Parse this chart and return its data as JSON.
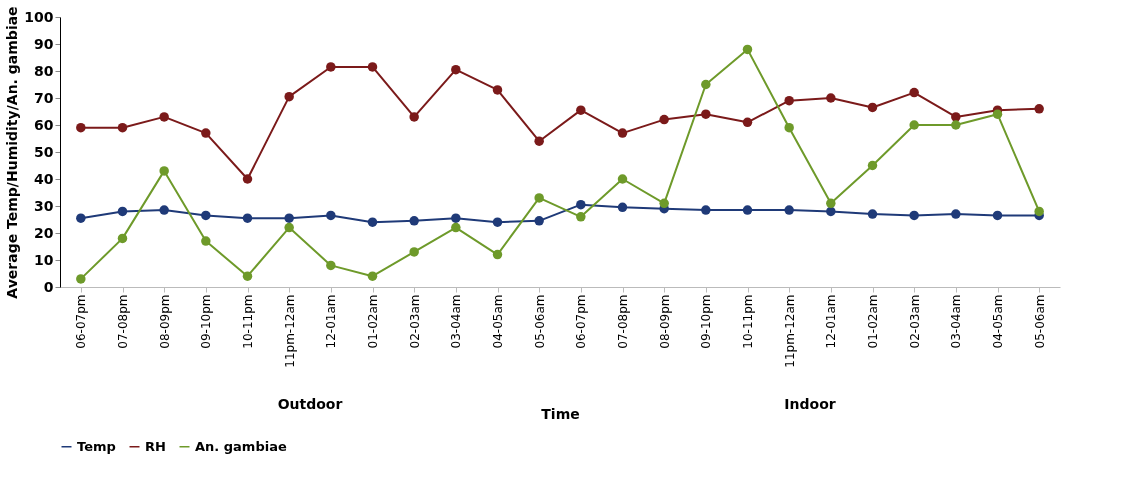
{
  "chart_data": {
    "type": "line",
    "ylabel": "Average Temp/Humidity/An. gambiae",
    "xlabel": "Time",
    "categories": [
      "06-07pm",
      "07-08pm",
      "08-09pm",
      "09-10pm",
      "10-11pm",
      "11pm-12am",
      "12-01am",
      "01-02am",
      "02-03am",
      "03-04am",
      "04-05am",
      "05-06am",
      "06-07pm",
      "07-08pm",
      "08-09pm",
      "09-10pm",
      "10-11pm",
      "11pm-12am",
      "12-01am",
      "01-02am",
      "02-03am",
      "03-04am",
      "04-05am",
      "05-06am"
    ],
    "series": [
      {
        "name": "Temp",
        "color": "#1f3a78",
        "values": [
          25.5,
          28,
          28.5,
          26.5,
          25.5,
          25.5,
          26.5,
          24,
          24.5,
          25.5,
          24,
          24.5,
          30.5,
          29.5,
          29,
          28.5,
          28.5,
          28.5,
          28,
          27,
          26.5,
          27,
          26.5,
          26.5
        ]
      },
      {
        "name": "RH",
        "color": "#7b1a1a",
        "values": [
          59,
          59,
          63,
          57,
          40,
          70.5,
          81.5,
          81.5,
          63,
          80.5,
          73,
          54,
          65.5,
          57,
          62,
          64,
          61,
          69,
          70,
          66.5,
          72,
          63,
          65.5,
          66
        ]
      },
      {
        "name": "An. gambiae",
        "color": "#6e9a2a",
        "values": [
          3,
          18,
          43,
          17,
          4,
          22,
          8,
          4,
          13,
          22,
          12,
          33,
          26,
          40,
          31,
          75,
          88,
          59,
          31,
          45,
          60,
          60,
          64,
          28
        ]
      }
    ],
    "annotations": [
      "Outdoor",
      "Indoor"
    ],
    "ylim": [
      0,
      100
    ],
    "yticks": [
      0,
      10,
      20,
      30,
      40,
      50,
      60,
      70,
      80,
      90,
      100
    ],
    "grid": false,
    "legend": "bottom",
    "marker": "circle",
    "line_style": "solid"
  }
}
